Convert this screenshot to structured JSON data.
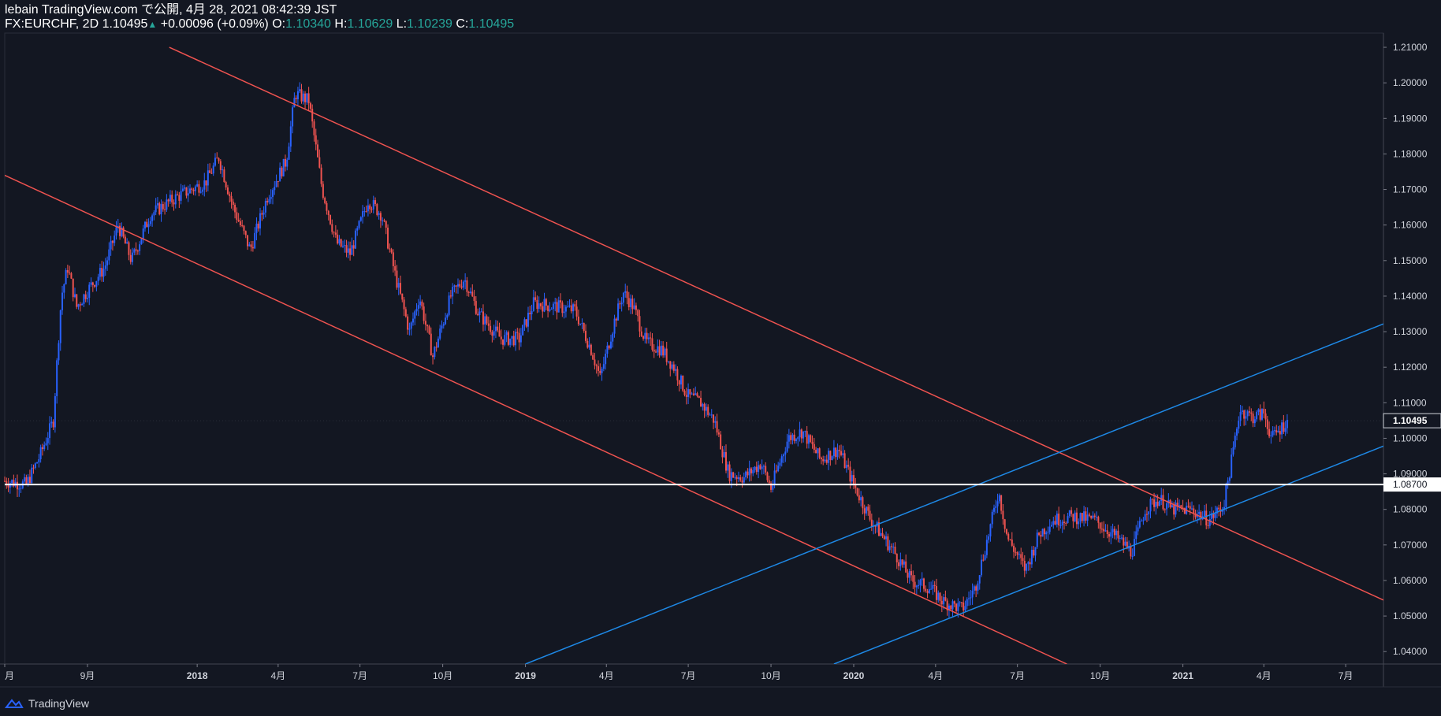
{
  "header": {
    "line1": "lebain TradingView.com で公開, 4月 28, 2021 08:42:39 JST",
    "symbol": "FX:EURCHF, 2D",
    "last": "1.10495",
    "change": "+0.00096 (+0.09%)",
    "o_label": "O:",
    "o": "1.10340",
    "h_label": "H:",
    "h": "1.10629",
    "l_label": "L:",
    "l": "1.10239",
    "c_label": "C:",
    "c": "1.10495"
  },
  "footer": {
    "brand": "TradingView"
  },
  "colors": {
    "up": "#2962ff",
    "down": "#ef5350",
    "bg": "#131722",
    "upLine": "#1e88e5",
    "downLine": "#ef5350"
  },
  "chart_data": {
    "type": "candlestick",
    "symbol": "FX:EURCHF",
    "interval": "2D",
    "x_labels": [
      "月",
      "9月",
      "2018",
      "4月",
      "7月",
      "10月",
      "2019",
      "4月",
      "7月",
      "10月",
      "2020",
      "4月",
      "7月",
      "10月",
      "2021",
      "4月",
      "7月"
    ],
    "x_label_dates": [
      "2017-06-01",
      "2017-09-01",
      "2018-01-01",
      "2018-04-01",
      "2018-07-01",
      "2018-10-01",
      "2019-01-01",
      "2019-04-01",
      "2019-07-01",
      "2019-10-01",
      "2020-01-01",
      "2020-04-01",
      "2020-07-01",
      "2020-10-01",
      "2021-01-01",
      "2021-04-01",
      "2021-07-01"
    ],
    "y_ticks": [
      "1.21000",
      "1.20000",
      "1.19000",
      "1.18000",
      "1.17000",
      "1.16000",
      "1.15000",
      "1.14000",
      "1.13000",
      "1.12000",
      "1.11000",
      "1.10000",
      "1.09000",
      "1.08000",
      "1.07000",
      "1.06000",
      "1.05000",
      "1.04000"
    ],
    "ylim": [
      1.0365,
      1.214
    ],
    "xlim": [
      "2017-06-01",
      "2021-08-12"
    ],
    "last_price": "1.10495",
    "horizontal_level": {
      "value": 1.087,
      "label": "1.08700"
    },
    "price_path": [
      [
        "2017-06-01",
        1.088
      ],
      [
        "2017-06-25",
        1.087
      ],
      [
        "2017-07-10",
        1.095
      ],
      [
        "2017-07-25",
        1.105
      ],
      [
        "2017-07-30",
        1.125
      ],
      [
        "2017-08-03",
        1.14
      ],
      [
        "2017-08-10",
        1.148
      ],
      [
        "2017-08-20",
        1.137
      ],
      [
        "2017-09-05",
        1.143
      ],
      [
        "2017-09-20",
        1.148
      ],
      [
        "2017-10-05",
        1.16
      ],
      [
        "2017-10-20",
        1.15
      ],
      [
        "2017-11-10",
        1.163
      ],
      [
        "2017-12-10",
        1.168
      ],
      [
        "2018-01-10",
        1.172
      ],
      [
        "2018-01-25",
        1.179
      ],
      [
        "2018-02-10",
        1.165
      ],
      [
        "2018-03-01",
        1.153
      ],
      [
        "2018-03-20",
        1.168
      ],
      [
        "2018-04-10",
        1.178
      ],
      [
        "2018-04-20",
        1.197
      ],
      [
        "2018-05-05",
        1.195
      ],
      [
        "2018-05-20",
        1.17
      ],
      [
        "2018-06-05",
        1.155
      ],
      [
        "2018-06-20",
        1.152
      ],
      [
        "2018-07-10",
        1.167
      ],
      [
        "2018-07-25",
        1.163
      ],
      [
        "2018-08-10",
        1.145
      ],
      [
        "2018-08-25",
        1.13
      ],
      [
        "2018-09-05",
        1.14
      ],
      [
        "2018-09-20",
        1.123
      ],
      [
        "2018-10-10",
        1.14
      ],
      [
        "2018-10-25",
        1.145
      ],
      [
        "2018-11-10",
        1.135
      ],
      [
        "2018-12-05",
        1.128
      ],
      [
        "2018-12-25",
        1.128
      ],
      [
        "2019-01-10",
        1.138
      ],
      [
        "2019-02-05",
        1.137
      ],
      [
        "2019-02-25",
        1.136
      ],
      [
        "2019-03-15",
        1.125
      ],
      [
        "2019-03-25",
        1.117
      ],
      [
        "2019-04-10",
        1.133
      ],
      [
        "2019-04-20",
        1.141
      ],
      [
        "2019-05-01",
        1.137
      ],
      [
        "2019-05-15",
        1.127
      ],
      [
        "2019-06-01",
        1.125
      ],
      [
        "2019-06-15",
        1.12
      ],
      [
        "2019-06-30",
        1.112
      ],
      [
        "2019-07-15",
        1.11
      ],
      [
        "2019-07-30",
        1.105
      ],
      [
        "2019-08-15",
        1.09
      ],
      [
        "2019-09-01",
        1.089
      ],
      [
        "2019-09-20",
        1.093
      ],
      [
        "2019-10-01",
        1.086
      ],
      [
        "2019-10-20",
        1.1
      ],
      [
        "2019-11-05",
        1.102
      ],
      [
        "2019-11-25",
        1.094
      ],
      [
        "2019-12-15",
        1.097
      ],
      [
        "2020-01-01",
        1.087
      ],
      [
        "2020-01-20",
        1.077
      ],
      [
        "2020-02-15",
        1.068
      ],
      [
        "2020-03-05",
        1.06
      ],
      [
        "2020-03-25",
        1.058
      ],
      [
        "2020-04-10",
        1.054
      ],
      [
        "2020-05-01",
        1.052
      ],
      [
        "2020-05-15",
        1.058
      ],
      [
        "2020-05-30",
        1.073
      ],
      [
        "2020-06-10",
        1.085
      ],
      [
        "2020-06-20",
        1.072
      ],
      [
        "2020-07-10",
        1.063
      ],
      [
        "2020-07-25",
        1.073
      ],
      [
        "2020-08-10",
        1.077
      ],
      [
        "2020-09-01",
        1.078
      ],
      [
        "2020-09-25",
        1.077
      ],
      [
        "2020-10-20",
        1.072
      ],
      [
        "2020-11-05",
        1.068
      ],
      [
        "2020-11-20",
        1.08
      ],
      [
        "2020-12-05",
        1.083
      ],
      [
        "2020-12-20",
        1.08
      ],
      [
        "2021-01-10",
        1.08
      ],
      [
        "2021-01-30",
        1.077
      ],
      [
        "2021-02-15",
        1.081
      ],
      [
        "2021-02-25",
        1.095
      ],
      [
        "2021-03-05",
        1.108
      ],
      [
        "2021-03-20",
        1.106
      ],
      [
        "2021-04-01",
        1.107
      ],
      [
        "2021-04-10",
        1.1
      ],
      [
        "2021-04-27",
        1.105
      ]
    ],
    "trendlines": [
      {
        "color": "red",
        "p1": [
          "2017-12-01",
          1.21
        ],
        "p2": [
          "2021-08-12",
          1.0545
        ]
      },
      {
        "color": "red",
        "p1": [
          "2017-06-01",
          1.174
        ],
        "p2": [
          "2020-08-25",
          1.0365
        ]
      },
      {
        "color": "blue",
        "p1": [
          "2019-01-01",
          1.0365
        ],
        "p2": [
          "2021-08-12",
          1.1322
        ]
      },
      {
        "color": "blue",
        "p1": [
          "2019-12-10",
          1.0365
        ],
        "p2": [
          "2021-08-12",
          1.0978
        ]
      }
    ]
  }
}
